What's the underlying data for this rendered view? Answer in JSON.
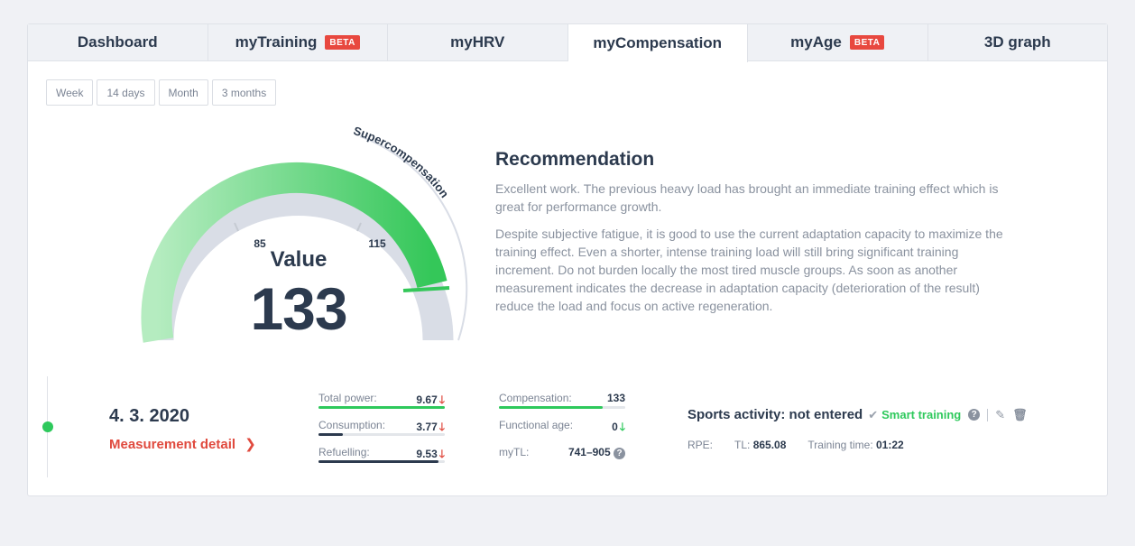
{
  "tabs": [
    {
      "label": "Dashboard",
      "badge": ""
    },
    {
      "label": "myTraining",
      "badge": "BETA"
    },
    {
      "label": "myHRV",
      "badge": ""
    },
    {
      "label": "myCompensation",
      "badge": "",
      "active": true
    },
    {
      "label": "myAge",
      "badge": "BETA"
    },
    {
      "label": "3D graph",
      "badge": ""
    }
  ],
  "periods": [
    "Week",
    "14 days",
    "Month",
    "3 months"
  ],
  "gauge": {
    "label": "Value",
    "value": "133",
    "tick_low": "85",
    "tick_high": "115",
    "zone_label": "Supercompensation",
    "colors": {
      "start": "#a6e6b3",
      "end": "#34c759",
      "track": "#d9dde6",
      "text": "#2c3a4e"
    }
  },
  "recommendation": {
    "title": "Recommendation",
    "p1": "Excellent work. The previous heavy load has brought an immediate training effect which is great for performance growth.",
    "p2": "Despite subjective fatigue, it is good to use the current adaptation capacity to maximize the training effect. Even a shorter, intense training load will still bring significant training increment. Do not burden locally the most tired muscle groups. As soon as another measurement indicates the decrease in adaptation capacity (deterioration of the result) reduce the load and focus on active regeneration."
  },
  "measurement": {
    "date": "4. 3. 2020",
    "detail_label": "Measurement detail",
    "detail_icon": "chevron-right-icon"
  },
  "metrics_left": [
    {
      "label": "Total power:",
      "value": "9.67",
      "trend": "down",
      "bar_fraction": 1.0,
      "bar_color": "#2ec95c"
    },
    {
      "label": "Consumption:",
      "value": "3.77",
      "trend": "down",
      "bar_fraction": 0.19,
      "bar_color": "#2c3a4e"
    },
    {
      "label": "Refuelling:",
      "value": "9.53",
      "trend": "down",
      "bar_fraction": 0.95,
      "bar_color": "#2c3a4e"
    }
  ],
  "metrics_right": [
    {
      "label": "Compensation:",
      "value": "133",
      "trend": "",
      "bar_fraction": 0.82,
      "bar_color": "#2ec95c"
    },
    {
      "label": "Functional age:",
      "value": "0",
      "trend": "down-green",
      "bar_fraction": null
    },
    {
      "label": "myTL:",
      "value": "741–905",
      "trend": "help",
      "bar_fraction": null
    }
  ],
  "sports": {
    "label": "Sports activity: not entered",
    "smart": "Smart training",
    "rpe_label": "RPE:",
    "tl_label": "TL:",
    "tl_value": "865.08",
    "time_label": "Training time:",
    "time_value": "01:22"
  },
  "colors": {
    "up_arrow": "#e04a3e",
    "down_green": "#2ec95c",
    "accent_red": "#e04a3e"
  }
}
